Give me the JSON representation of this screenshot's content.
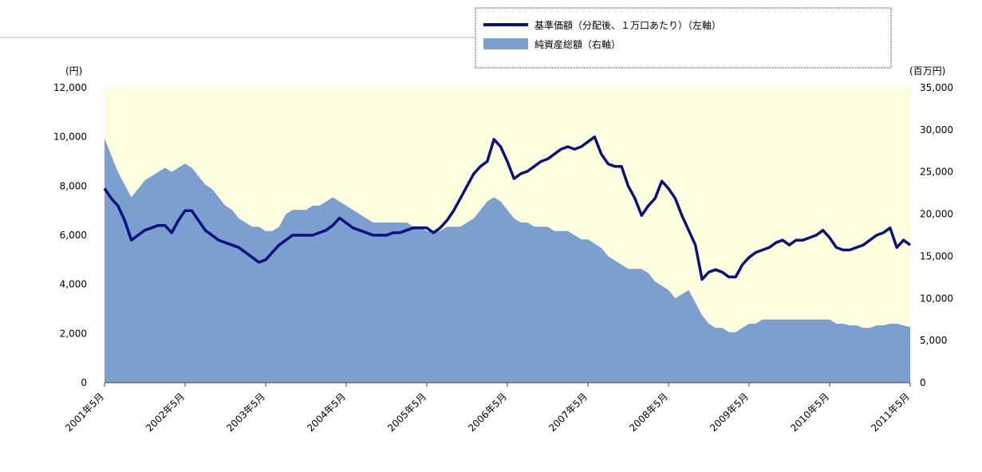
{
  "chart_data": {
    "type": "line",
    "y_label": "(円)",
    "y2_label": "(百万円)",
    "categories": [
      "2001年5月",
      null,
      null,
      null,
      null,
      null,
      null,
      null,
      null,
      null,
      null,
      null,
      "2002年5月",
      null,
      null,
      null,
      null,
      null,
      null,
      null,
      null,
      null,
      null,
      null,
      "2003年5月",
      null,
      null,
      null,
      null,
      null,
      null,
      null,
      null,
      null,
      null,
      null,
      "2004年5月",
      null,
      null,
      null,
      null,
      null,
      null,
      null,
      null,
      null,
      null,
      null,
      "2005年5月",
      null,
      null,
      null,
      null,
      null,
      null,
      null,
      null,
      null,
      null,
      null,
      "2006年5月",
      null,
      null,
      null,
      null,
      null,
      null,
      null,
      null,
      null,
      null,
      null,
      "2007年5月",
      null,
      null,
      null,
      null,
      null,
      null,
      null,
      null,
      null,
      null,
      null,
      "2008年5月",
      null,
      null,
      null,
      null,
      null,
      null,
      null,
      null,
      null,
      null,
      null,
      "2009年5月",
      null,
      null,
      null,
      null,
      null,
      null,
      null,
      null,
      null,
      null,
      null,
      "2010年5月",
      null,
      null,
      null,
      null,
      null,
      null,
      null,
      null,
      null,
      null,
      null,
      "2011年5月"
    ],
    "series": [
      {
        "name": "純資産総額（右軸）",
        "type": "area",
        "axis": "y2",
        "color": "#7b9fcf",
        "values": [
          29000,
          27000,
          25000,
          23500,
          22000,
          23000,
          24000,
          24500,
          25000,
          25500,
          25000,
          25500,
          26000,
          25500,
          24500,
          23500,
          23000,
          22000,
          21000,
          20500,
          19500,
          19000,
          18500,
          18500,
          18000,
          18000,
          18500,
          20000,
          20500,
          20500,
          20500,
          21000,
          21000,
          21500,
          22000,
          21500,
          21000,
          20500,
          20000,
          19500,
          19000,
          19000,
          19000,
          19000,
          19000,
          19000,
          18500,
          18500,
          18000,
          18000,
          18000,
          18500,
          18500,
          18500,
          19000,
          19500,
          20500,
          21500,
          22000,
          21500,
          20500,
          19500,
          19000,
          19000,
          18500,
          18500,
          18500,
          18000,
          18000,
          18000,
          17500,
          17000,
          17000,
          16500,
          16000,
          15000,
          14500,
          14000,
          13500,
          13500,
          13500,
          13000,
          12000,
          11500,
          11000,
          10000,
          10500,
          11000,
          9500,
          8000,
          7000,
          6500,
          6500,
          6000,
          6000,
          6500,
          7000,
          7000,
          7500,
          7500,
          7500,
          7500,
          7500,
          7500,
          7500,
          7500,
          7500,
          7500,
          7500,
          7000,
          7000,
          6800,
          6800,
          6500,
          6500,
          6800,
          6800,
          7000,
          7000,
          6800,
          6600
        ]
      },
      {
        "name": "基準価額（分配後、１万口あたり）（左軸）",
        "type": "line",
        "axis": "y",
        "color": "#0a1280",
        "values": [
          7900,
          7500,
          7200,
          6600,
          5800,
          6000,
          6200,
          6300,
          6400,
          6400,
          6100,
          6600,
          7000,
          7000,
          6600,
          6200,
          6000,
          5800,
          5700,
          5600,
          5500,
          5300,
          5100,
          4900,
          5000,
          5300,
          5600,
          5800,
          6000,
          6000,
          6000,
          6000,
          6100,
          6200,
          6400,
          6700,
          6500,
          6300,
          6200,
          6100,
          6000,
          6000,
          6000,
          6100,
          6100,
          6200,
          6300,
          6300,
          6300,
          6100,
          6300,
          6600,
          7000,
          7500,
          8000,
          8500,
          8800,
          9000,
          9900,
          9600,
          9000,
          8300,
          8500,
          8600,
          8800,
          9000,
          9100,
          9300,
          9500,
          9600,
          9500,
          9600,
          9800,
          10000,
          9300,
          8900,
          8800,
          8800,
          8000,
          7500,
          6800,
          7200,
          7500,
          8200,
          7900,
          7500,
          6800,
          6200,
          5600,
          4200,
          4500,
          4600,
          4500,
          4300,
          4300,
          4800,
          5100,
          5300,
          5400,
          5500,
          5700,
          5800,
          5600,
          5800,
          5800,
          5900,
          6000,
          6200,
          5900,
          5500,
          5400,
          5400,
          5500,
          5600,
          5800,
          6000,
          6100,
          6300,
          5500,
          5800,
          5600
        ]
      }
    ],
    "ylim": [
      0,
      12000
    ],
    "yticks": [
      {
        "value": 0,
        "label": "0"
      },
      {
        "value": 2000,
        "label": "2,000"
      },
      {
        "value": 4000,
        "label": "4,000"
      },
      {
        "value": 6000,
        "label": "6,000"
      },
      {
        "value": 8000,
        "label": "8,000"
      },
      {
        "value": 10000,
        "label": "10,000"
      },
      {
        "value": 12000,
        "label": "12,000"
      }
    ],
    "y2lim": [
      0,
      35000
    ],
    "y2ticks": [
      {
        "value": 0,
        "label": "0"
      },
      {
        "value": 5000,
        "label": "5,000"
      },
      {
        "value": 10000,
        "label": "10,000"
      },
      {
        "value": 15000,
        "label": "15,000"
      },
      {
        "value": 20000,
        "label": "20,000"
      },
      {
        "value": 25000,
        "label": "25,000"
      },
      {
        "value": 30000,
        "label": "30,000"
      },
      {
        "value": 35000,
        "label": "35,000"
      }
    ],
    "plot_background": "#ffffe0"
  }
}
